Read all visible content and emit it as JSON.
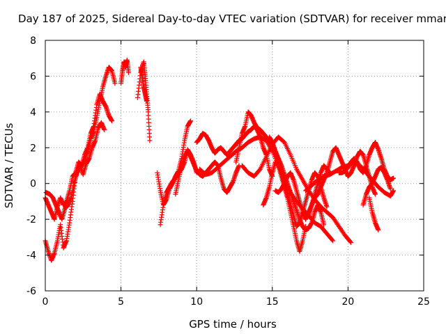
{
  "chart_data": {
    "type": "scatter",
    "title": "Day 187 of 2025, Sidereal Day-to-day VTEC variation (SDTVAR) for receiver mmar",
    "xlabel": "GPS time / hours",
    "ylabel": "SDTVAR / TECUs",
    "xlim": [
      0,
      25
    ],
    "ylim": [
      -6,
      8
    ],
    "x_ticks": [
      0,
      5,
      10,
      15,
      20,
      25
    ],
    "y_ticks": [
      -6,
      -4,
      -2,
      0,
      2,
      4,
      6,
      8
    ],
    "grid": true,
    "marker": "+",
    "series_color": "#ff0000",
    "series": [
      {
        "name": "trace-1",
        "x": [
          0.0,
          0.2,
          0.4,
          0.6,
          0.8,
          1.0,
          1.2,
          1.4,
          1.6,
          1.8,
          2.0,
          2.2,
          2.4,
          2.6,
          2.8,
          3.0,
          3.2,
          3.4,
          3.6,
          3.8,
          4.0,
          4.2,
          4.4
        ],
        "y": [
          -0.8,
          -1.2,
          -1.6,
          -2.0,
          -1.3,
          -0.8,
          -1.2,
          -1.0,
          -0.4,
          0.4,
          0.6,
          1.2,
          1.0,
          1.6,
          2.0,
          2.8,
          3.2,
          4.4,
          5.0,
          4.6,
          4.3,
          3.8,
          3.5
        ]
      },
      {
        "name": "trace-2",
        "x": [
          0.0,
          0.2,
          0.4,
          0.6,
          0.8,
          1.0,
          1.2,
          1.4,
          1.6,
          1.8,
          2.0,
          2.2,
          2.4,
          2.6,
          2.8,
          3.0,
          3.2,
          3.4,
          3.6,
          3.8,
          4.0,
          4.2,
          4.4,
          4.6
        ],
        "y": [
          -3.2,
          -3.8,
          -4.3,
          -3.9,
          -3.2,
          -2.3,
          -3.6,
          -3.2,
          -2.2,
          -1.0,
          0.4,
          0.8,
          1.0,
          1.3,
          1.8,
          2.5,
          2.9,
          3.7,
          4.6,
          5.4,
          6.0,
          6.5,
          6.3,
          5.6
        ]
      },
      {
        "name": "trace-3",
        "x": [
          0.05,
          0.3,
          0.5,
          0.7,
          0.9,
          1.1,
          1.3,
          1.5,
          1.7,
          1.9,
          2.1,
          2.3,
          2.5,
          2.7,
          2.9,
          3.1,
          3.3,
          3.5,
          3.7,
          3.9
        ],
        "y": [
          -0.5,
          -0.6,
          -0.8,
          -1.2,
          -1.6,
          -2.0,
          -1.4,
          -1.2,
          -0.8,
          0.0,
          0.6,
          1.0,
          0.5,
          1.1,
          1.4,
          2.0,
          2.4,
          3.1,
          3.4,
          3.0
        ]
      },
      {
        "name": "trace-4",
        "x": [
          5.0,
          5.1,
          5.2,
          5.3,
          5.4,
          5.5
        ],
        "y": [
          5.6,
          6.3,
          6.8,
          6.5,
          6.9,
          6.2
        ]
      },
      {
        "name": "trace-5",
        "x": [
          6.1,
          6.3,
          6.5,
          6.6,
          6.7,
          6.8,
          6.9
        ],
        "y": [
          4.8,
          6.2,
          6.8,
          6.0,
          5.0,
          4.0,
          2.4
        ]
      },
      {
        "name": "trace-6",
        "x": [
          6.3,
          6.4,
          6.5,
          6.6,
          6.7
        ],
        "y": [
          6.5,
          6.0,
          5.4,
          5.0,
          4.6
        ]
      },
      {
        "name": "trace-7",
        "x": [
          7.4,
          7.6,
          7.8,
          8.0,
          8.2,
          8.4,
          8.6,
          8.8,
          9.0,
          9.2,
          9.4,
          9.6
        ],
        "y": [
          0.6,
          -0.4,
          -1.2,
          -0.9,
          -0.3,
          0.0,
          0.4,
          0.7,
          1.4,
          2.4,
          3.2,
          3.5
        ]
      },
      {
        "name": "trace-8",
        "x": [
          7.6,
          7.8,
          8.0,
          8.2,
          8.4,
          8.6,
          8.8,
          9.0,
          9.2,
          9.4,
          9.6,
          9.8,
          10.0
        ],
        "y": [
          -2.3,
          -1.2,
          -0.5,
          -0.2,
          0.1,
          0.3,
          0.6,
          0.8,
          1.2,
          1.9,
          1.6,
          1.2,
          0.6
        ]
      },
      {
        "name": "trace-9",
        "x": [
          8.6,
          8.8,
          9.0,
          9.2,
          9.4,
          9.6,
          9.8,
          10.0,
          10.2,
          10.4,
          10.6,
          10.8,
          11.0,
          11.2,
          11.4,
          11.6,
          11.8,
          12.0,
          12.2,
          12.4,
          12.6,
          12.8
        ],
        "y": [
          -0.6,
          0.2,
          1.0,
          1.5,
          1.8,
          1.5,
          1.1,
          0.7,
          0.5,
          0.4,
          0.6,
          0.8,
          1.0,
          1.2,
          1.0,
          0.3,
          -0.3,
          -0.5,
          -0.2,
          0.1,
          0.6,
          1.0
        ]
      },
      {
        "name": "trace-10",
        "x": [
          10.0,
          10.2,
          10.4,
          10.6,
          10.8,
          11.0,
          11.2,
          11.4,
          11.6,
          11.8,
          12.0,
          12.2,
          12.4,
          12.6,
          12.8,
          13.0,
          13.2,
          13.4,
          13.6,
          13.8,
          14.0,
          14.2,
          14.4,
          14.6,
          14.8,
          15.0
        ],
        "y": [
          2.3,
          2.5,
          2.8,
          2.7,
          2.4,
          2.0,
          1.7,
          1.9,
          2.0,
          1.8,
          1.6,
          1.8,
          2.0,
          2.2,
          2.4,
          2.5,
          2.7,
          2.9,
          3.0,
          3.2,
          3.0,
          2.6,
          2.0,
          1.6,
          0.8,
          0.4
        ]
      },
      {
        "name": "trace-11",
        "x": [
          10.2,
          10.6,
          11.0,
          11.4,
          11.8,
          12.2,
          12.6,
          13.0,
          13.4,
          13.8,
          14.2,
          14.6,
          15.0,
          15.4,
          15.8,
          16.2,
          16.6,
          17.0,
          17.4,
          17.8,
          18.2,
          18.6,
          19.0
        ],
        "y": [
          0.8,
          0.5,
          0.6,
          0.9,
          1.2,
          1.5,
          1.8,
          2.0,
          2.3,
          2.5,
          2.6,
          2.4,
          1.8,
          1.0,
          0.2,
          -0.5,
          -1.0,
          -1.4,
          -1.8,
          -2.2,
          -2.4,
          -2.8,
          -3.2
        ]
      },
      {
        "name": "trace-12",
        "x": [
          12.6,
          12.8,
          13.0,
          13.2,
          13.4,
          13.6,
          13.8,
          14.0,
          14.2,
          14.4,
          14.6,
          14.8,
          15.0,
          15.2,
          15.4,
          15.6,
          15.8,
          16.0,
          16.2,
          16.4,
          16.6,
          16.8,
          17.0,
          17.2,
          17.4,
          17.6,
          17.8,
          18.0,
          18.2,
          18.4
        ],
        "y": [
          1.2,
          2.0,
          2.8,
          3.2,
          4.0,
          3.8,
          3.4,
          3.1,
          3.0,
          2.8,
          2.6,
          2.4,
          2.2,
          1.8,
          1.4,
          1.0,
          0.5,
          0.0,
          -0.5,
          -1.0,
          -1.5,
          -2.0,
          -2.4,
          -2.6,
          -2.5,
          -2.2,
          -1.6,
          -1.2,
          -1.6,
          -2.3
        ]
      },
      {
        "name": "trace-13",
        "x": [
          13.0,
          13.4,
          13.8,
          14.2,
          14.6,
          15.0,
          15.4,
          15.8,
          16.2,
          16.6,
          17.0,
          17.4,
          17.8,
          18.2,
          18.6,
          19.0,
          19.4,
          19.8,
          20.2
        ],
        "y": [
          1.0,
          0.6,
          0.4,
          0.8,
          1.5,
          2.2,
          2.6,
          2.3,
          1.6,
          0.8,
          0.2,
          -0.4,
          -0.9,
          -1.3,
          -1.6,
          -1.9,
          -2.4,
          -2.9,
          -3.3
        ]
      },
      {
        "name": "trace-14",
        "x": [
          14.8,
          15.0,
          15.2,
          15.4,
          15.6,
          15.8,
          16.0,
          16.2,
          16.4,
          16.6,
          16.8,
          17.0,
          17.2,
          17.4,
          17.6,
          17.8,
          18.0,
          18.2,
          18.4,
          18.6
        ],
        "y": [
          2.6,
          2.3,
          1.8,
          1.2,
          0.6,
          0.0,
          -0.6,
          -1.2,
          -1.8,
          -2.4,
          -2.2,
          -1.6,
          -1.0,
          -0.4,
          0.2,
          0.6,
          0.4,
          -0.2,
          -0.8,
          -1.3
        ]
      },
      {
        "name": "trace-15",
        "x": [
          15.2,
          15.4,
          15.6,
          15.8,
          16.0,
          16.2,
          16.4,
          16.6,
          16.8,
          17.0,
          17.2,
          17.4,
          17.6,
          17.8,
          18.0,
          18.2,
          18.4,
          18.6,
          18.8,
          19.0,
          19.2,
          19.4,
          19.6,
          19.8,
          20.0,
          20.2,
          20.4,
          20.6,
          20.8,
          21.0,
          21.2,
          21.4,
          21.6,
          21.8
        ],
        "y": [
          -0.4,
          -0.5,
          -0.3,
          0.0,
          0.4,
          0.6,
          0.2,
          -0.4,
          -1.0,
          -1.6,
          -2.0,
          -1.6,
          -1.2,
          -0.8,
          -0.6,
          -0.2,
          0.2,
          0.6,
          1.2,
          1.8,
          2.0,
          1.6,
          1.2,
          0.8,
          0.4,
          0.6,
          1.0,
          1.5,
          1.8,
          1.6,
          1.0,
          0.4,
          -0.2,
          -0.6
        ]
      },
      {
        "name": "trace-16",
        "x": [
          14.4,
          14.6,
          14.8,
          15.0,
          15.2,
          15.4,
          15.6,
          15.8,
          16.0,
          16.2,
          16.4,
          16.6,
          16.8,
          17.0,
          17.2
        ],
        "y": [
          -1.2,
          -0.8,
          -0.2,
          0.6,
          1.2,
          1.0,
          0.4,
          -0.2,
          -0.8,
          -1.6,
          -2.4,
          -3.2,
          -3.8,
          -3.2,
          -2.4
        ]
      },
      {
        "name": "trace-17",
        "x": [
          17.2,
          17.6,
          18.0,
          18.4,
          18.8,
          19.2,
          19.6,
          20.0,
          20.4,
          20.8,
          21.2,
          21.6,
          22.0,
          22.4,
          22.8,
          23.0
        ],
        "y": [
          -0.4,
          -0.1,
          0.2,
          0.4,
          0.5,
          0.7,
          0.9,
          1.0,
          1.2,
          1.0,
          0.6,
          0.2,
          -0.2,
          -0.5,
          -0.7,
          -0.4
        ]
      },
      {
        "name": "trace-18",
        "x": [
          17.4,
          17.6,
          17.8,
          18.0,
          18.2,
          18.4,
          18.6,
          18.8
        ],
        "y": [
          -1.8,
          -1.2,
          -0.6,
          0.0,
          0.6,
          1.0,
          0.8,
          0.6
        ]
      },
      {
        "name": "trace-19",
        "x": [
          19.4,
          19.6,
          19.8,
          20.0,
          20.2,
          20.4,
          20.6,
          20.8,
          21.0,
          21.2,
          21.4,
          21.6,
          21.8,
          22.0,
          22.2,
          22.4,
          22.6,
          22.8,
          23.0
        ],
        "y": [
          0.6,
          0.6,
          0.7,
          0.9,
          1.2,
          1.4,
          1.2,
          0.8,
          0.6,
          1.0,
          1.6,
          2.0,
          2.3,
          1.9,
          1.4,
          0.8,
          0.4,
          0.2,
          0.3
        ]
      },
      {
        "name": "trace-20",
        "x": [
          21.0,
          21.2,
          21.4,
          21.6,
          21.8,
          22.0,
          22.2,
          22.4,
          22.6,
          22.8
        ],
        "y": [
          -1.2,
          -0.6,
          -0.2,
          0.0,
          0.4,
          0.8,
          0.9,
          0.6,
          0.2,
          -0.3
        ]
      },
      {
        "name": "trace-21",
        "x": [
          21.4,
          21.6,
          21.8,
          22.0
        ],
        "y": [
          -0.8,
          -1.6,
          -2.2,
          -2.6
        ]
      }
    ]
  }
}
